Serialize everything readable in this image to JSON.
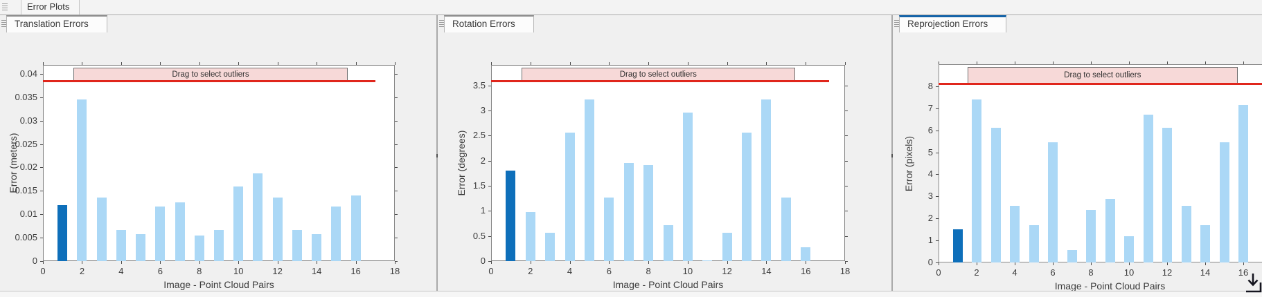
{
  "window": {
    "top_tab": "Error Plots"
  },
  "panels": [
    {
      "tab": "Translation Errors",
      "active": false
    },
    {
      "tab": "Rotation Errors",
      "active": false
    },
    {
      "tab": "Reprojection Errors",
      "active": true
    }
  ],
  "colors": {
    "active_tab_accent": "#1463a8",
    "bar_light": "#abd8f6",
    "bar_highlight": "#0e6fba",
    "threshold_red": "#e0261c",
    "band_pink": "#f7d9d8"
  },
  "chart_data": [
    {
      "type": "bar",
      "x": [
        1,
        2,
        3,
        4,
        5,
        6,
        7,
        8,
        9,
        10,
        11,
        12,
        13,
        14,
        15,
        16
      ],
      "values": [
        0.012,
        0.0345,
        0.0135,
        0.0067,
        0.0058,
        0.0116,
        0.0126,
        0.0055,
        0.0067,
        0.016,
        0.0188,
        0.0135,
        0.0067,
        0.0058,
        0.0116,
        0.014
      ],
      "highlight_x": 1,
      "xlabel": "Image - Point Cloud Pairs",
      "ylabel": "Error (meters)",
      "xlim": [
        0,
        18
      ],
      "ylim": [
        0,
        0.0419
      ],
      "xticks": [
        0,
        2,
        4,
        6,
        8,
        10,
        12,
        14,
        16,
        18
      ],
      "yticks": [
        0,
        0.005,
        0.01,
        0.015,
        0.02,
        0.025,
        0.03,
        0.035,
        0.04
      ],
      "ytick_labels": [
        "0",
        "0.005",
        "0.01",
        "0.015",
        "0.02",
        "0.025",
        "0.03",
        "0.035",
        "0.04"
      ],
      "threshold": {
        "value": 0.0384,
        "x_start": 0,
        "x_end": 17
      },
      "band": {
        "x_start": 1.55,
        "x_end": 15.6,
        "label": "Drag to select outliers"
      },
      "bar_color": "#abd8f6",
      "highlight_color": "#0e6fba",
      "line_color": "#e0261c",
      "band_fill": "#f7d9d8",
      "grid": false,
      "legend": null
    },
    {
      "type": "bar",
      "x": [
        1,
        2,
        3,
        4,
        5,
        6,
        7,
        8,
        9,
        10,
        11,
        12,
        13,
        14,
        15,
        16
      ],
      "values": [
        1.8,
        0.98,
        0.57,
        2.56,
        3.22,
        1.26,
        1.95,
        1.92,
        0.71,
        2.96,
        0.02,
        0.57,
        2.56,
        3.22,
        1.26,
        0.27
      ],
      "highlight_x": 1,
      "xlabel": "Image - Point Cloud Pairs",
      "ylabel": "Error (degrees)",
      "xlim": [
        0,
        18
      ],
      "ylim": [
        0,
        3.91
      ],
      "xticks": [
        0,
        2,
        4,
        6,
        8,
        10,
        12,
        14,
        16,
        18
      ],
      "yticks": [
        0,
        0.5,
        1,
        1.5,
        2,
        2.5,
        3,
        3.5
      ],
      "ytick_labels": [
        "0",
        "0.5",
        "1",
        "1.5",
        "2",
        "2.5",
        "3",
        "3.5"
      ],
      "threshold": {
        "value": 3.58,
        "x_start": 0,
        "x_end": 17.2
      },
      "band": {
        "x_start": 1.55,
        "x_end": 15.45,
        "label": "Drag to select outliers"
      },
      "bar_color": "#abd8f6",
      "highlight_color": "#0e6fba",
      "line_color": "#e0261c",
      "band_fill": "#f7d9d8",
      "grid": false,
      "legend": null
    },
    {
      "type": "bar",
      "x": [
        1,
        2,
        3,
        4,
        5,
        6,
        7,
        8,
        9,
        10,
        11,
        12,
        13,
        14,
        15,
        16
      ],
      "values": [
        1.5,
        7.4,
        6.1,
        2.58,
        1.7,
        5.45,
        0.55,
        2.38,
        2.87,
        1.2,
        6.7,
        6.1,
        2.58,
        1.7,
        5.45,
        7.15
      ],
      "highlight_x": 1,
      "xlabel": "Image - Point Cloud Pairs",
      "ylabel": "Error (pixels)",
      "xlim": [
        0,
        18
      ],
      "ylim": [
        0,
        9
      ],
      "xticks": [
        0,
        2,
        4,
        6,
        8,
        10,
        12,
        14,
        16
      ],
      "yticks": [
        0,
        1,
        2,
        3,
        4,
        5,
        6,
        7,
        8
      ],
      "ytick_labels": [
        "0",
        "1",
        "2",
        "3",
        "4",
        "5",
        "6",
        "7",
        "8"
      ],
      "threshold": {
        "value": 8.12,
        "x_start": 0,
        "x_end": 18
      },
      "band": {
        "x_start": 1.52,
        "x_end": 15.7,
        "label": "Drag to select outliers"
      },
      "bar_color": "#abd8f6",
      "highlight_color": "#0e6fba",
      "line_color": "#e0261c",
      "band_fill": "#f7d9d8",
      "grid": false,
      "legend": null
    }
  ]
}
